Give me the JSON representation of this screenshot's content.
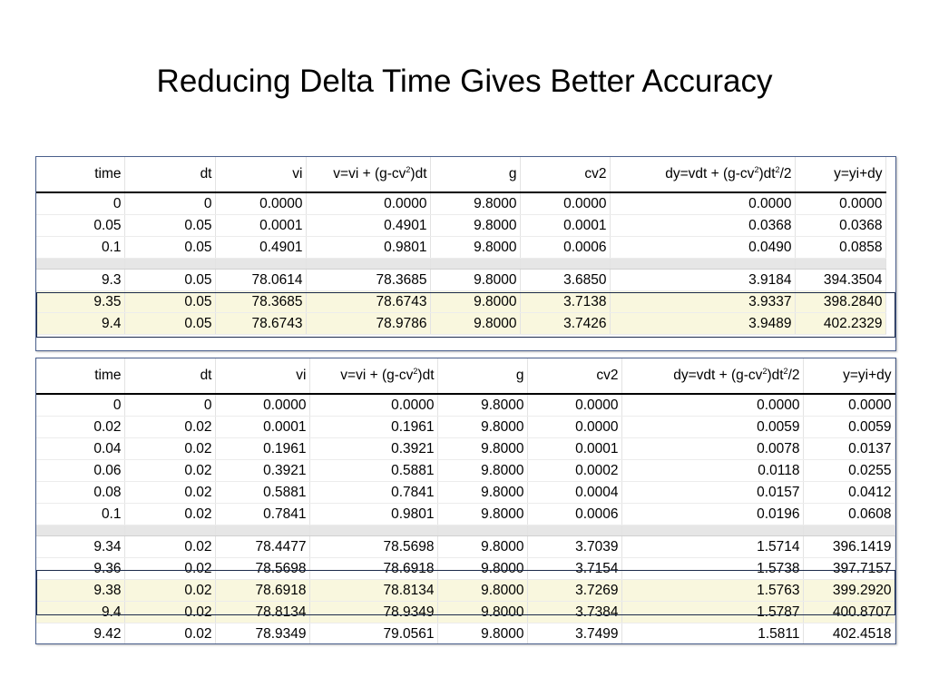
{
  "title": "Reducing Delta Time Gives Better Accuracy",
  "headers": {
    "time": "time",
    "dt": "dt",
    "vi": "vi",
    "v_pre": "v=vi + (g-cv",
    "v_sup": "2",
    "v_post": ")dt",
    "g": "g",
    "cv2": "cv2",
    "dy_pre": "dy=vdt + (g-cv",
    "dy_sup1": "2",
    "dy_mid": ")dt",
    "dy_sup2": "2",
    "dy_post": "/2",
    "y": "y=yi+dy"
  },
  "table1": {
    "top_rows": [
      [
        "0",
        "0",
        "0.0000",
        "0.0000",
        "9.8000",
        "0.0000",
        "0.0000",
        "0.0000"
      ],
      [
        "0.05",
        "0.05",
        "0.0001",
        "0.4901",
        "9.8000",
        "0.0001",
        "0.0368",
        "0.0368"
      ],
      [
        "0.1",
        "0.05",
        "0.4901",
        "0.9801",
        "9.8000",
        "0.0006",
        "0.0490",
        "0.0858"
      ]
    ],
    "bottom_rows": [
      [
        "9.3",
        "0.05",
        "78.0614",
        "78.3685",
        "9.8000",
        "3.6850",
        "3.9184",
        "394.3504"
      ],
      [
        "9.35",
        "0.05",
        "78.3685",
        "78.6743",
        "9.8000",
        "3.7138",
        "3.9337",
        "398.2840"
      ],
      [
        "9.4",
        "0.05",
        "78.6743",
        "78.9786",
        "9.8000",
        "3.7426",
        "3.9489",
        "402.2329"
      ]
    ]
  },
  "table2": {
    "top_rows": [
      [
        "0",
        "0",
        "0.0000",
        "0.0000",
        "9.8000",
        "0.0000",
        "0.0000",
        "0.0000"
      ],
      [
        "0.02",
        "0.02",
        "0.0001",
        "0.1961",
        "9.8000",
        "0.0000",
        "0.0059",
        "0.0059"
      ],
      [
        "0.04",
        "0.02",
        "0.1961",
        "0.3921",
        "9.8000",
        "0.0001",
        "0.0078",
        "0.0137"
      ],
      [
        "0.06",
        "0.02",
        "0.3921",
        "0.5881",
        "9.8000",
        "0.0002",
        "0.0118",
        "0.0255"
      ],
      [
        "0.08",
        "0.02",
        "0.5881",
        "0.7841",
        "9.8000",
        "0.0004",
        "0.0157",
        "0.0412"
      ],
      [
        "0.1",
        "0.02",
        "0.7841",
        "0.9801",
        "9.8000",
        "0.0006",
        "0.0196",
        "0.0608"
      ]
    ],
    "bottom_rows": [
      [
        "9.34",
        "0.02",
        "78.4477",
        "78.5698",
        "9.8000",
        "3.7039",
        "1.5714",
        "396.1419"
      ],
      [
        "9.36",
        "0.02",
        "78.5698",
        "78.6918",
        "9.8000",
        "3.7154",
        "1.5738",
        "397.7157"
      ],
      [
        "9.38",
        "0.02",
        "78.6918",
        "78.8134",
        "9.8000",
        "3.7269",
        "1.5763",
        "399.2920"
      ],
      [
        "9.4",
        "0.02",
        "78.8134",
        "78.9349",
        "9.8000",
        "3.7384",
        "1.5787",
        "400.8707"
      ],
      [
        "9.42",
        "0.02",
        "78.9349",
        "79.0561",
        "9.8000",
        "3.7499",
        "1.5811",
        "402.4518"
      ]
    ]
  },
  "colors": {
    "highlight_fill": "#f9f7de",
    "highlight_border": "#1b2a4a",
    "gap_fill": "#e6e6e6",
    "sheet_border": "#4a5f8c"
  }
}
